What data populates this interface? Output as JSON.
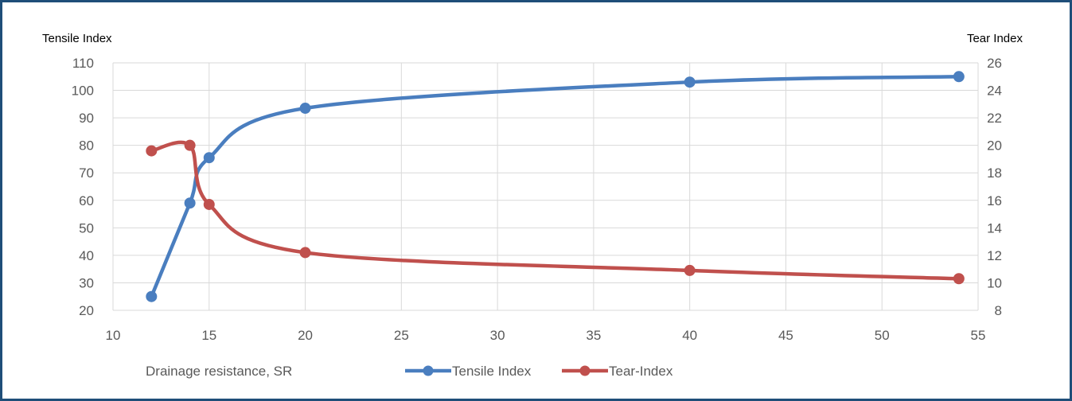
{
  "chart_data": {
    "type": "line",
    "y_left_label": "Tensile Index",
    "y_right_label": "Tear  Index",
    "xlabel": "Drainage resistance, SR",
    "xlim": [
      10,
      55
    ],
    "x_ticks": [
      10,
      15,
      20,
      25,
      30,
      35,
      40,
      45,
      50,
      55
    ],
    "y_left_lim": [
      20,
      110
    ],
    "y_left_ticks": [
      20,
      30,
      40,
      50,
      60,
      70,
      80,
      90,
      100,
      110
    ],
    "y_right_lim": [
      8,
      26
    ],
    "y_right_ticks": [
      8,
      10,
      12,
      14,
      16,
      18,
      20,
      22,
      24,
      26
    ],
    "grid": true,
    "legend_position": "bottom",
    "series": [
      {
        "name": "Tensile Index",
        "axis": "left",
        "color": "#4a7ebf",
        "x": [
          12,
          14,
          15,
          20,
          40,
          54
        ],
        "y": [
          25,
          59,
          75.5,
          93.5,
          103,
          105
        ]
      },
      {
        "name": "Tear-Index",
        "axis": "right",
        "color": "#c0504d",
        "x": [
          12,
          14,
          15,
          20,
          40,
          54
        ],
        "y": [
          19.6,
          20,
          15.7,
          12.2,
          10.9,
          10.3
        ]
      }
    ]
  }
}
